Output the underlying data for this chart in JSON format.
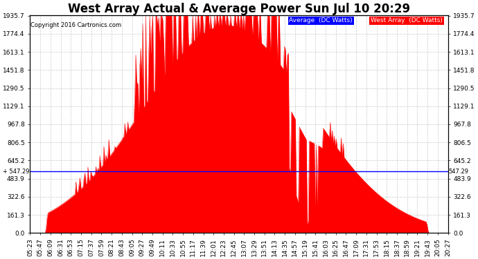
{
  "title": "West Array Actual & Average Power Sun Jul 10 20:29",
  "copyright": "Copyright 2016 Cartronics.com",
  "legend_avg_label": "Average  (DC Watts)",
  "legend_west_label": "West Array  (DC Watts)",
  "avg_line_value": 547.29,
  "ymax": 1935.7,
  "ymin": 0.0,
  "yticks": [
    0.0,
    161.3,
    322.6,
    483.9,
    645.2,
    806.5,
    967.8,
    1129.1,
    1290.5,
    1451.8,
    1613.1,
    1774.4,
    1935.7
  ],
  "background_color": "#ffffff",
  "fill_color": "#ff0000",
  "avg_line_color": "#0000ff",
  "grid_color": "#bbbbbb",
  "title_fontsize": 12,
  "tick_fontsize": 6.5,
  "xtick_labels": [
    "05:23",
    "05:47",
    "06:09",
    "06:31",
    "06:53",
    "07:15",
    "07:37",
    "07:59",
    "08:21",
    "08:43",
    "09:05",
    "09:27",
    "09:49",
    "10:11",
    "10:33",
    "10:55",
    "11:17",
    "11:39",
    "12:01",
    "12:23",
    "12:45",
    "13:07",
    "13:29",
    "13:51",
    "14:13",
    "14:35",
    "14:57",
    "15:19",
    "15:41",
    "16:03",
    "16:25",
    "16:47",
    "17:09",
    "17:31",
    "17:53",
    "18:15",
    "18:37",
    "18:59",
    "19:21",
    "19:43",
    "20:05",
    "20:27"
  ]
}
